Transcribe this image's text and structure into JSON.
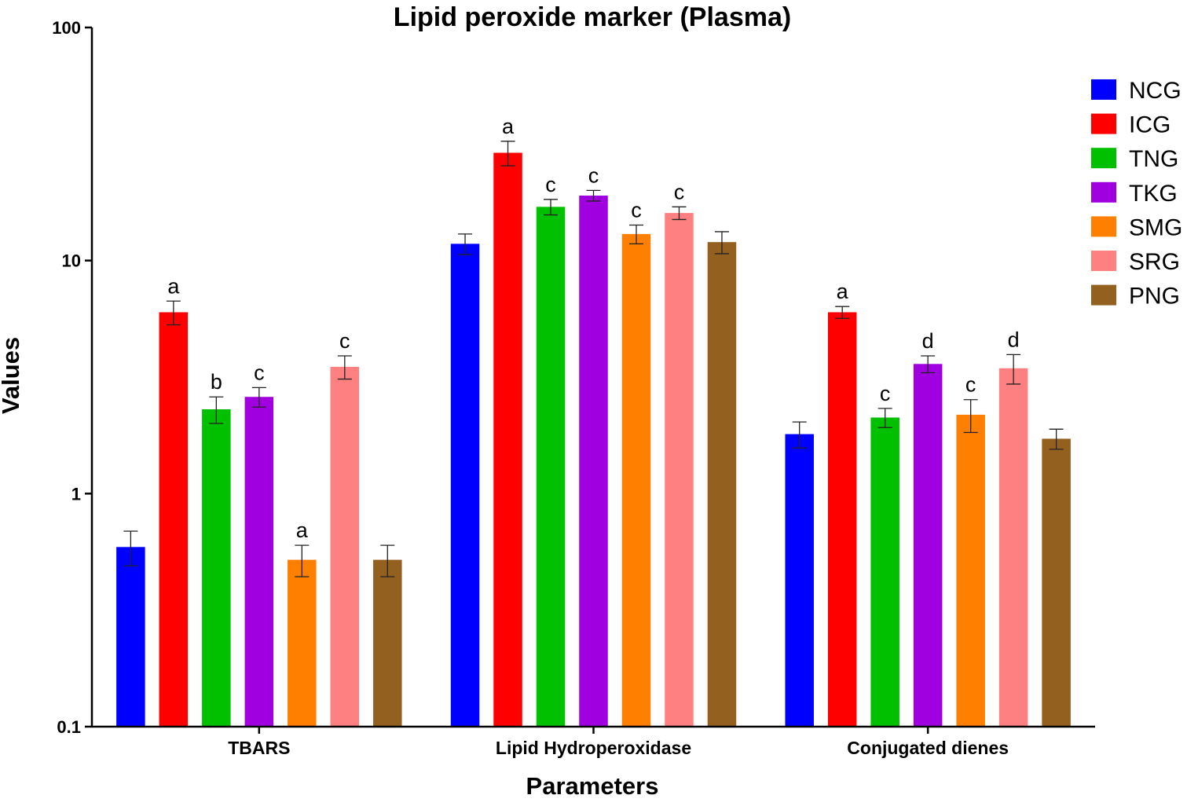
{
  "chart_data": {
    "type": "bar",
    "title": "Lipid peroxide marker (Plasma)",
    "xlabel": "Parameters",
    "ylabel": "Values",
    "yscale": "log",
    "ylim": [
      0.1,
      100
    ],
    "yticks": [
      {
        "value": 0.1,
        "label": "0.1"
      },
      {
        "value": 1,
        "label": "1"
      },
      {
        "value": 10,
        "label": "10"
      },
      {
        "value": 100,
        "label": "100"
      }
    ],
    "grid": false,
    "legend_position": "top-right",
    "categories": [
      "TBARS",
      "Lipid Hydroperoxidase",
      "Conjugated dienes"
    ],
    "series": [
      {
        "name": "NCG",
        "color": "#0000ff",
        "values": [
          0.59,
          11.8,
          1.8
        ],
        "errors": [
          0.1,
          1.2,
          0.23
        ],
        "labels": [
          "",
          "",
          ""
        ]
      },
      {
        "name": "ICG",
        "color": "#ff0000",
        "values": [
          6.0,
          29.0,
          6.0
        ],
        "errors": [
          0.7,
          3.5,
          0.35
        ],
        "labels": [
          "a",
          "a",
          "a"
        ]
      },
      {
        "name": "TNG",
        "color": "#00c000",
        "values": [
          2.3,
          17.0,
          2.12
        ],
        "errors": [
          0.3,
          1.3,
          0.2
        ],
        "labels": [
          "b",
          "c",
          "c"
        ]
      },
      {
        "name": "TKG",
        "color": "#a000e0",
        "values": [
          2.6,
          19.0,
          3.6
        ],
        "errors": [
          0.25,
          1.0,
          0.3
        ],
        "labels": [
          "c",
          "c",
          "d"
        ]
      },
      {
        "name": "SMG",
        "color": "#ff8000",
        "values": [
          0.52,
          13.0,
          2.18
        ],
        "errors": [
          0.08,
          1.2,
          0.35
        ],
        "labels": [
          "a",
          "c",
          "c"
        ]
      },
      {
        "name": "SRG",
        "color": "#ff8080",
        "values": [
          3.5,
          16.0,
          3.45
        ],
        "errors": [
          0.4,
          1.0,
          0.5
        ],
        "labels": [
          "c",
          "c",
          "d"
        ]
      },
      {
        "name": "PNG",
        "color": "#946020",
        "values": [
          0.52,
          12.0,
          1.72
        ],
        "errors": [
          0.08,
          1.3,
          0.17
        ],
        "labels": [
          "",
          "",
          ""
        ]
      }
    ]
  }
}
